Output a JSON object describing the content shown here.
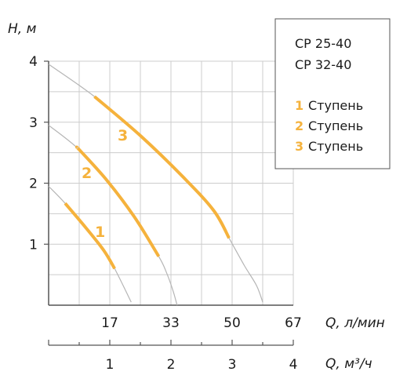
{
  "chart_data": {
    "type": "line",
    "title": "",
    "ylabel": "H, м",
    "xlabel": "Q, л/мин",
    "xlabel2": "Q, м³/ч",
    "xlim": [
      0,
      4
    ],
    "ylim": [
      0,
      4
    ],
    "y_ticks": [
      "1",
      "2",
      "3",
      "4"
    ],
    "x_ticks_lmin": [
      "17",
      "33",
      "50",
      "67"
    ],
    "x_ticks_m3h": [
      "1",
      "2",
      "3",
      "4"
    ],
    "grid": true,
    "legend_position": "top-right",
    "legend": {
      "models": [
        "CP 25-40",
        "CP 32-40"
      ],
      "entries": [
        {
          "num": "1",
          "label": "Ступень"
        },
        {
          "num": "2",
          "label": "Ступень"
        },
        {
          "num": "3",
          "label": "Ступень"
        }
      ]
    },
    "colors": {
      "curve": "#f5b23c",
      "envelope": "#b5b5b5",
      "grid": "#cccccc",
      "axis": "#555555"
    },
    "series": [
      {
        "label": "1",
        "full_curve": [
          [
            0,
            1.95
          ],
          [
            0.5,
            1.55
          ],
          [
            1.0,
            1.0
          ],
          [
            1.5,
            0.3
          ],
          [
            1.35,
            0.55
          ],
          [
            1.38,
            0.5
          ],
          [
            1.45,
            0.38
          ],
          [
            1.3,
            0.62
          ],
          [
            1.55,
            0.2
          ],
          [
            1.47,
            0.32
          ],
          [
            1.42,
            0.42
          ],
          [
            1.35,
            0.55
          ]
        ],
        "highlight": [
          [
            0.27,
            1.67
          ],
          [
            1.08,
            0.6
          ]
        ],
        "points": [
          [
            0,
            1.95
          ],
          [
            0.27,
            1.67
          ],
          [
            0.6,
            1.28
          ],
          [
            0.9,
            0.9
          ],
          [
            1.08,
            0.6
          ],
          [
            1.35,
            0.05
          ]
        ]
      },
      {
        "label": "2",
        "points": [
          [
            0,
            2.95
          ],
          [
            0.5,
            2.55
          ],
          [
            0.95,
            2.05
          ],
          [
            1.4,
            1.45
          ],
          [
            1.8,
            0.8
          ],
          [
            1.92,
            0.55
          ],
          [
            2.03,
            0.25
          ],
          [
            2.1,
            0.0
          ]
        ],
        "highlight_range": [
          0.48,
          1.8
        ]
      },
      {
        "label": "3",
        "points": [
          [
            0,
            3.95
          ],
          [
            0.75,
            3.42
          ],
          [
            1.5,
            2.78
          ],
          [
            2.2,
            2.1
          ],
          [
            2.7,
            1.55
          ],
          [
            2.95,
            1.1
          ],
          [
            3.2,
            0.65
          ],
          [
            3.4,
            0.32
          ],
          [
            3.5,
            0.05
          ]
        ],
        "highlight_range": [
          0.75,
          2.95
        ]
      }
    ]
  }
}
